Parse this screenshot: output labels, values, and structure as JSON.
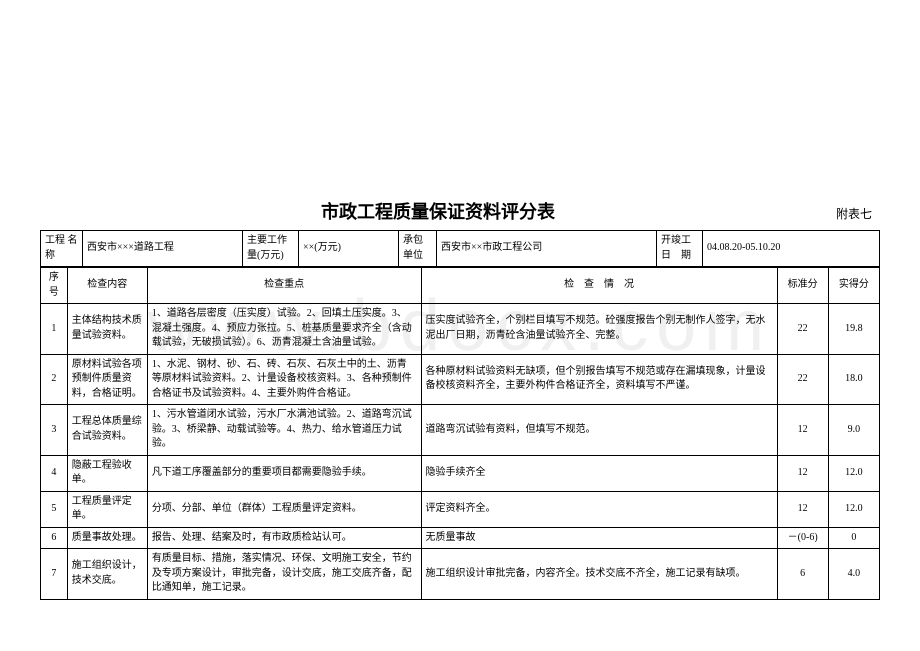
{
  "title": "市政工程质量保证资料评分表",
  "annex": "附表七",
  "header": {
    "labels": {
      "proj": "工程\n名称",
      "work": "主要工作\n量(万元)",
      "contractor": "承包\n单位",
      "date": "开竣工\n日　期"
    },
    "proj": "西安市×××道路工程",
    "work": "××(万元)",
    "contractor": "西安市××市政工程公司",
    "date": "04.08.20-05.10.20"
  },
  "cols": {
    "seq": "序\n号",
    "item": "检查内容",
    "kp": "检查重点",
    "sit": "检　查　情　况",
    "std": "标准分",
    "act": "实得分"
  },
  "rows": [
    {
      "n": "1",
      "item": "主体结构技术质量试验资料。",
      "kp": "1、道路各层密度（压实度）试验。2、回填土压实度。3、混凝土强度。4、预应力张拉。5、桩基质量要求齐全（含动载试验，无破损试验）。6、沥青混凝土含油量试验。",
      "sit": "压实度试验齐全，个别栏目填写不规范。砼强度报告个别无制作人签字，无水泥出厂日期，沥青砼含油量试验齐全、完整。",
      "std": "22",
      "act": "19.8"
    },
    {
      "n": "2",
      "item": "原材料试验各项预制件质量资料，合格证明。",
      "kp": "1、水泥、钢材、砂、石、砖、石灰、石灰土中的土、沥青等原材料试验资料。2、计量设备校核资料。3、各种预制件合格证书及试验资料。4、主要外购件合格证。",
      "sit": "各种原材料试验资料无缺项，但个别报告填写不规范或存在漏填现象，计量设备校核资料齐全，主要外构件合格证齐全，资料填写不严谨。",
      "std": "22",
      "act": "18.0"
    },
    {
      "n": "3",
      "item": "工程总体质量综合试验资料。",
      "kp": "1、污水管道闭水试验，污水厂水满池试验。2、道路弯沉试验。3、桥梁静、动载试验等。4、热力、给水管道压力试验。",
      "sit": "道路弯沉试验有资料，但填写不规范。",
      "std": "12",
      "act": "9.0"
    },
    {
      "n": "4",
      "item": "隐蔽工程验收单。",
      "kp": "凡下道工序覆盖部分的重要项目都需要隐验手续。",
      "sit": "隐验手续齐全",
      "std": "12",
      "act": "12.0"
    },
    {
      "n": "5",
      "item": "工程质量评定单。",
      "kp": "分项、分部、单位（群体）工程质量评定资料。",
      "sit": "评定资料齐全。",
      "std": "12",
      "act": "12.0"
    },
    {
      "n": "6",
      "item": "质量事故处理。",
      "kp": "报告、处理、结案及时，有市政质检站认可。",
      "sit": "无质量事故",
      "std": "－(0-6)",
      "act": "0"
    },
    {
      "n": "7",
      "item": "施工组织设计，技术交底。",
      "kp": "有质量目标、措施，落实情况、环保、文明施工安全，节约及专项方案设计，审批完备，设计交底，施工交底齐备，配比通知单，施工记录。",
      "sit": "施工组织设计审批完备，内容齐全。技术交底不齐全，施工记录有缺项。",
      "std": "6",
      "act": "4.0"
    }
  ]
}
